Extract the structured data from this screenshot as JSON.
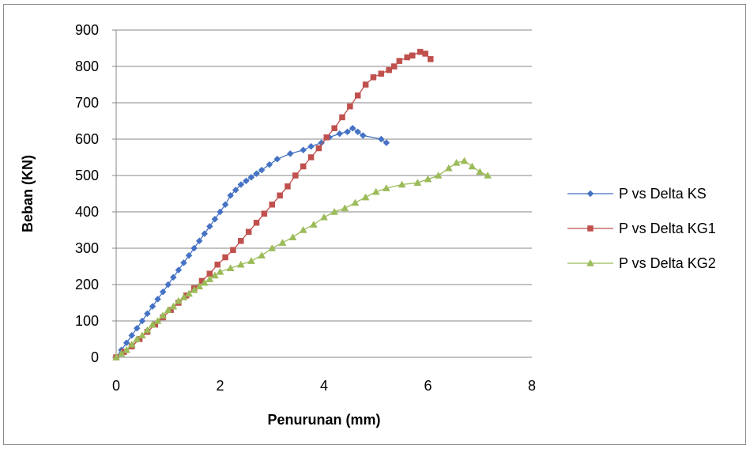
{
  "chart_data": {
    "type": "line",
    "title": "",
    "xlabel": "Penurunan (mm)",
    "ylabel": "Beban (KN)",
    "xlim": [
      0,
      8
    ],
    "ylim": [
      0,
      900
    ],
    "xticks": [
      0,
      2,
      4,
      6,
      8
    ],
    "yticks": [
      0,
      100,
      200,
      300,
      400,
      500,
      600,
      700,
      800,
      900
    ],
    "grid": "horizontal",
    "legend_position": "right",
    "series": [
      {
        "name": "P vs Delta KS",
        "color": "#4572c4",
        "marker": "diamond",
        "points": [
          [
            0,
            0
          ],
          [
            0.1,
            20
          ],
          [
            0.2,
            40
          ],
          [
            0.3,
            60
          ],
          [
            0.4,
            80
          ],
          [
            0.5,
            100
          ],
          [
            0.6,
            120
          ],
          [
            0.7,
            140
          ],
          [
            0.8,
            160
          ],
          [
            0.9,
            180
          ],
          [
            1.0,
            200
          ],
          [
            1.1,
            220
          ],
          [
            1.2,
            240
          ],
          [
            1.3,
            260
          ],
          [
            1.4,
            280
          ],
          [
            1.5,
            300
          ],
          [
            1.6,
            320
          ],
          [
            1.7,
            340
          ],
          [
            1.8,
            360
          ],
          [
            1.9,
            380
          ],
          [
            2.0,
            400
          ],
          [
            2.1,
            420
          ],
          [
            2.2,
            445
          ],
          [
            2.3,
            460
          ],
          [
            2.4,
            475
          ],
          [
            2.5,
            485
          ],
          [
            2.6,
            495
          ],
          [
            2.7,
            505
          ],
          [
            2.8,
            515
          ],
          [
            2.95,
            530
          ],
          [
            3.1,
            545
          ],
          [
            3.35,
            560
          ],
          [
            3.6,
            570
          ],
          [
            3.75,
            580
          ],
          [
            3.95,
            590
          ],
          [
            4.1,
            605
          ],
          [
            4.3,
            615
          ],
          [
            4.45,
            620
          ],
          [
            4.55,
            630
          ],
          [
            4.65,
            620
          ],
          [
            4.75,
            610
          ],
          [
            5.1,
            600
          ],
          [
            5.2,
            590
          ]
        ]
      },
      {
        "name": "P vs Delta KG1",
        "color": "#c0504d",
        "marker": "square",
        "points": [
          [
            0,
            0
          ],
          [
            0.15,
            15
          ],
          [
            0.3,
            30
          ],
          [
            0.45,
            50
          ],
          [
            0.6,
            70
          ],
          [
            0.75,
            90
          ],
          [
            0.9,
            110
          ],
          [
            1.05,
            130
          ],
          [
            1.2,
            150
          ],
          [
            1.35,
            170
          ],
          [
            1.5,
            190
          ],
          [
            1.65,
            210
          ],
          [
            1.8,
            230
          ],
          [
            1.95,
            255
          ],
          [
            2.1,
            275
          ],
          [
            2.25,
            295
          ],
          [
            2.4,
            320
          ],
          [
            2.55,
            345
          ],
          [
            2.7,
            370
          ],
          [
            2.85,
            395
          ],
          [
            3.0,
            420
          ],
          [
            3.15,
            445
          ],
          [
            3.3,
            470
          ],
          [
            3.45,
            500
          ],
          [
            3.6,
            525
          ],
          [
            3.75,
            550
          ],
          [
            3.9,
            575
          ],
          [
            4.05,
            605
          ],
          [
            4.2,
            630
          ],
          [
            4.35,
            660
          ],
          [
            4.5,
            690
          ],
          [
            4.65,
            720
          ],
          [
            4.8,
            750
          ],
          [
            4.95,
            770
          ],
          [
            5.1,
            780
          ],
          [
            5.25,
            790
          ],
          [
            5.35,
            800
          ],
          [
            5.45,
            815
          ],
          [
            5.6,
            825
          ],
          [
            5.7,
            830
          ],
          [
            5.85,
            840
          ],
          [
            5.95,
            835
          ],
          [
            6.05,
            820
          ]
        ]
      },
      {
        "name": "P vs Delta KG2",
        "color": "#9bbb59",
        "marker": "triangle",
        "points": [
          [
            0,
            0
          ],
          [
            0.1,
            10
          ],
          [
            0.2,
            20
          ],
          [
            0.3,
            35
          ],
          [
            0.4,
            50
          ],
          [
            0.5,
            60
          ],
          [
            0.6,
            75
          ],
          [
            0.7,
            90
          ],
          [
            0.8,
            100
          ],
          [
            0.9,
            115
          ],
          [
            1.0,
            130
          ],
          [
            1.1,
            140
          ],
          [
            1.2,
            155
          ],
          [
            1.3,
            165
          ],
          [
            1.4,
            175
          ],
          [
            1.5,
            185
          ],
          [
            1.6,
            195
          ],
          [
            1.7,
            205
          ],
          [
            1.8,
            215
          ],
          [
            1.9,
            225
          ],
          [
            2.0,
            235
          ],
          [
            2.2,
            245
          ],
          [
            2.4,
            255
          ],
          [
            2.6,
            265
          ],
          [
            2.8,
            280
          ],
          [
            3.0,
            300
          ],
          [
            3.2,
            315
          ],
          [
            3.4,
            330
          ],
          [
            3.6,
            350
          ],
          [
            3.8,
            365
          ],
          [
            4.0,
            385
          ],
          [
            4.2,
            400
          ],
          [
            4.4,
            410
          ],
          [
            4.6,
            425
          ],
          [
            4.8,
            440
          ],
          [
            5.0,
            455
          ],
          [
            5.2,
            465
          ],
          [
            5.5,
            475
          ],
          [
            5.8,
            480
          ],
          [
            6.0,
            490
          ],
          [
            6.2,
            500
          ],
          [
            6.4,
            520
          ],
          [
            6.55,
            535
          ],
          [
            6.7,
            540
          ],
          [
            6.85,
            525
          ],
          [
            7.0,
            510
          ],
          [
            7.15,
            500
          ]
        ]
      }
    ]
  }
}
